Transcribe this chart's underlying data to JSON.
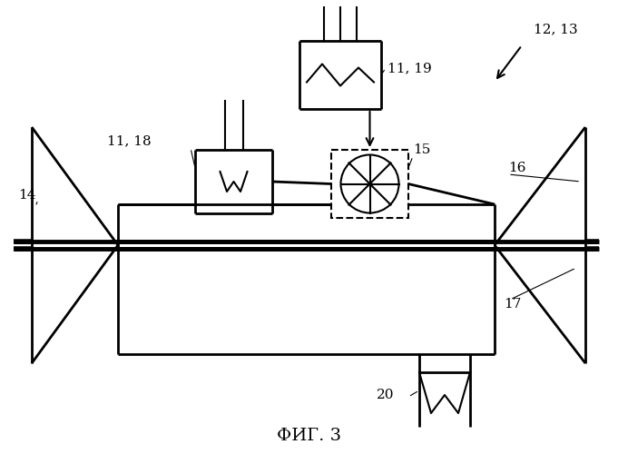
{
  "title": "ФИГ. 3",
  "bg_color": "#ffffff",
  "line_color": "#000000",
  "labels": {
    "12_13": "12, 13",
    "11_19": "11, 19",
    "11_18": "11, 18",
    "15": "15",
    "14": "14",
    "16": "16",
    "17": "17",
    "20": "20"
  }
}
